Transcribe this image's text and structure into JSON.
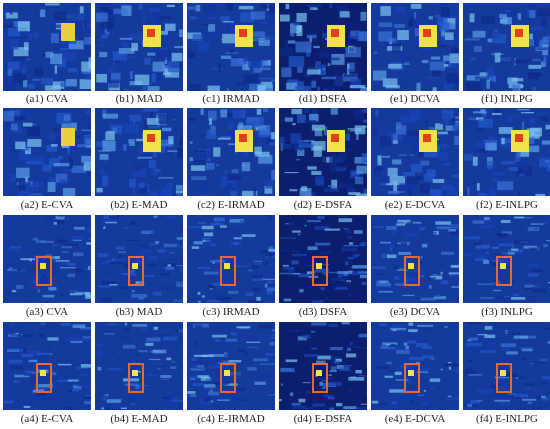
{
  "figure": {
    "rows": [
      {
        "captions": [
          "(a1) CVA",
          "(b1) MAD",
          "(c1) IRMAD",
          "(d1) DSFA",
          "(e1) DCVA",
          "(f1) INLPG"
        ]
      },
      {
        "captions": [
          "(a2) E-CVA",
          "(b2) E-MAD",
          "(c2) E-IRMAD",
          "(d2) E-DSFA",
          "(e2) E-DCVA",
          "(f2) E-INLPG"
        ]
      },
      {
        "captions": [
          "(a3) CVA",
          "(b3) MAD",
          "(c3) IRMAD",
          "(d3) DSFA",
          "(e3) DCVA",
          "(f3) INLPG"
        ]
      },
      {
        "captions": [
          "(a4) E-CVA",
          "(b4) E-MAD",
          "(c4) E-IRMAD",
          "(d4) E-DSFA",
          "(e4) E-DCVA",
          "(f4) E-INLPG"
        ]
      }
    ]
  }
}
